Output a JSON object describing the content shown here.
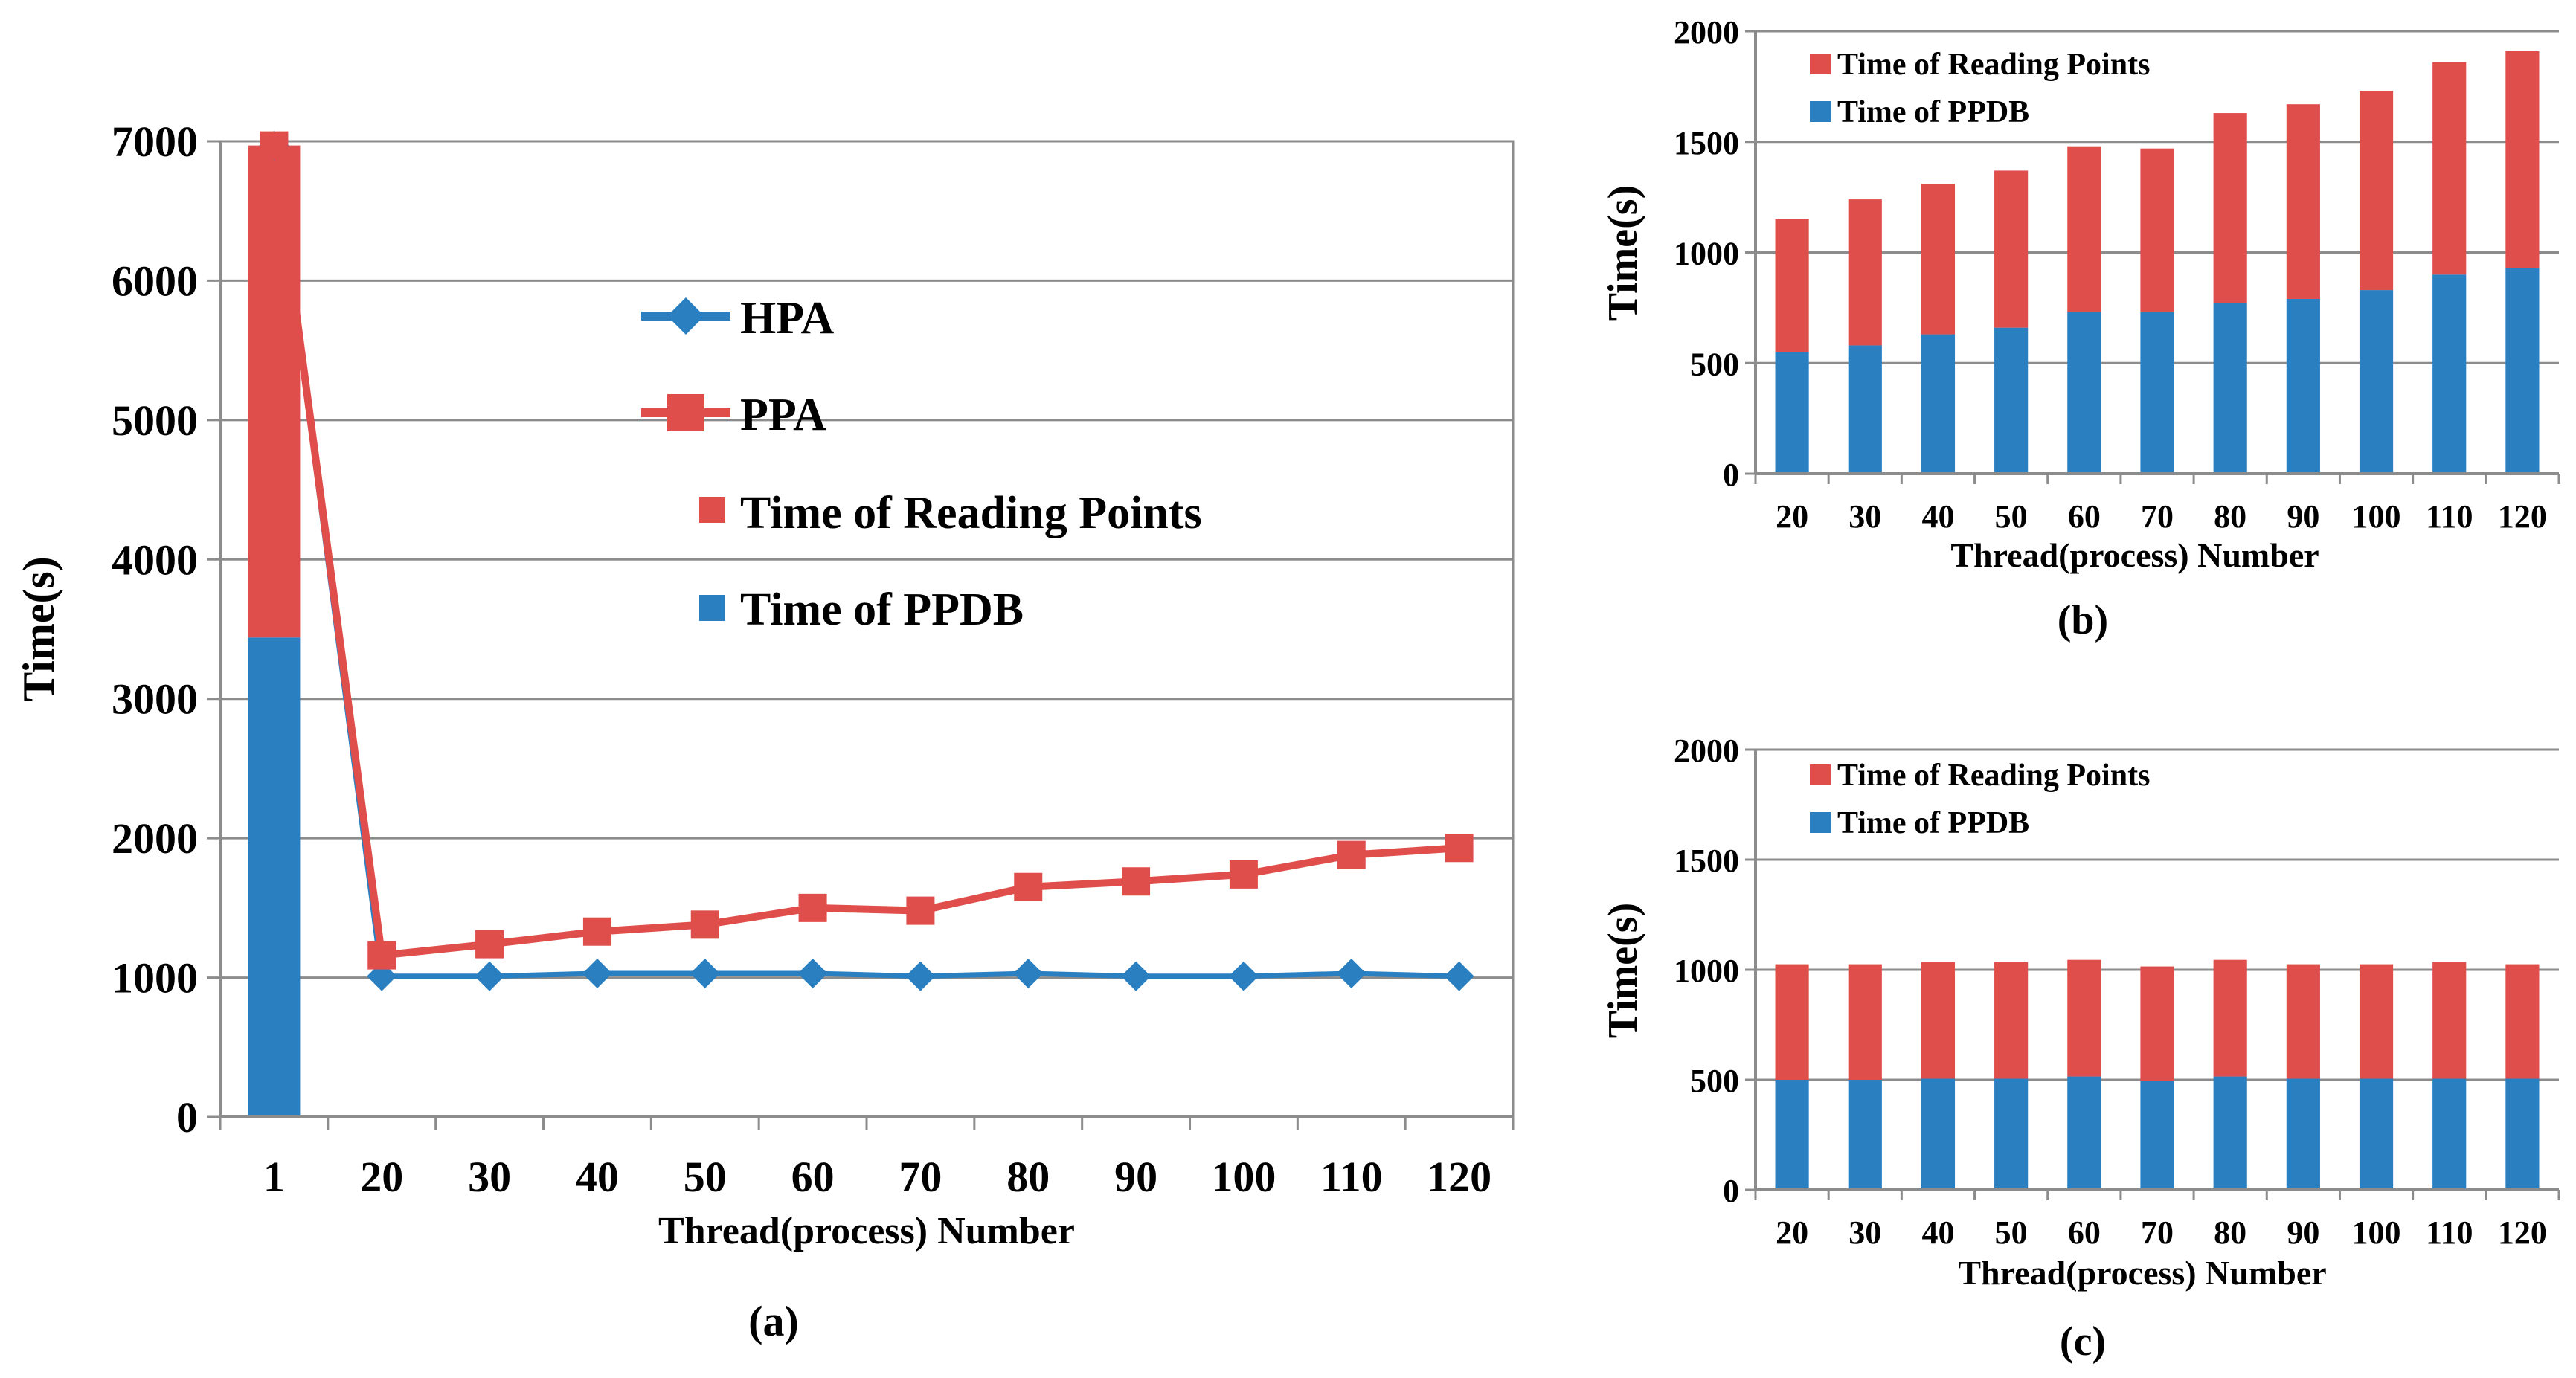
{
  "colors": {
    "hpa": "#2A7FC1",
    "ppa": "#E04E4C",
    "reading": "#E04E4C",
    "ppdb": "#2A7FC1",
    "grid": "#8C8C8C"
  },
  "chart_data": [
    {
      "type": "bar+line",
      "panel_label": "(a)",
      "title": "",
      "xlabel": "Thread(process) Number",
      "ylabel": "Time(s)",
      "ylim": [
        0,
        7000
      ],
      "yticks": [
        "0",
        "1000",
        "2000",
        "3000",
        "4000",
        "5000",
        "6000",
        "7000"
      ],
      "categories": [
        "1",
        "20",
        "30",
        "40",
        "50",
        "60",
        "70",
        "80",
        "90",
        "100",
        "110",
        "120"
      ],
      "legend": {
        "hpa": "HPA",
        "ppa": "PPA",
        "reading": "Time of Reading Points",
        "ppdb": "Time of PPDB"
      },
      "stacked_bar": {
        "category": "1",
        "ppdb": 3440,
        "reading": 3530
      },
      "series": [
        {
          "name": "HPA",
          "values": [
            6970,
            1010,
            1010,
            1030,
            1030,
            1030,
            1010,
            1030,
            1010,
            1010,
            1030,
            1010
          ]
        },
        {
          "name": "PPA",
          "values": [
            6970,
            1160,
            1240,
            1330,
            1380,
            1500,
            1480,
            1650,
            1690,
            1740,
            1880,
            1930
          ]
        }
      ]
    },
    {
      "type": "bar",
      "stacked": true,
      "panel_label": "(b)",
      "xlabel": "Thread(process) Number",
      "ylabel": "Time(s)",
      "ylim": [
        0,
        2000
      ],
      "yticks": [
        "0",
        "500",
        "1000",
        "1500",
        "2000"
      ],
      "categories": [
        "20",
        "30",
        "40",
        "50",
        "60",
        "70",
        "80",
        "90",
        "100",
        "110",
        "120"
      ],
      "legend": {
        "reading": "Time of Reading Points",
        "ppdb": "Time of PPDB"
      },
      "series": [
        {
          "name": "Time of PPDB",
          "values": [
            550,
            580,
            630,
            660,
            730,
            730,
            770,
            790,
            830,
            900,
            930
          ]
        },
        {
          "name": "Time of Reading Points",
          "values": [
            600,
            660,
            680,
            710,
            750,
            740,
            860,
            880,
            900,
            960,
            980
          ]
        }
      ]
    },
    {
      "type": "bar",
      "stacked": true,
      "panel_label": "(c)",
      "xlabel": "Thread(process) Number",
      "ylabel": "Time(s)",
      "ylim": [
        0,
        2000
      ],
      "yticks": [
        "0",
        "500",
        "1000",
        "1500",
        "2000"
      ],
      "categories": [
        "20",
        "30",
        "40",
        "50",
        "60",
        "70",
        "80",
        "90",
        "100",
        "110",
        "120"
      ],
      "legend": {
        "reading": "Time of Reading Points",
        "ppdb": "Time of PPDB"
      },
      "series": [
        {
          "name": "Time of PPDB",
          "values": [
            500,
            500,
            505,
            505,
            515,
            495,
            515,
            505,
            505,
            505,
            505
          ]
        },
        {
          "name": "Time of Reading Points",
          "values": [
            525,
            525,
            530,
            530,
            530,
            520,
            530,
            520,
            520,
            530,
            520
          ]
        }
      ]
    }
  ]
}
